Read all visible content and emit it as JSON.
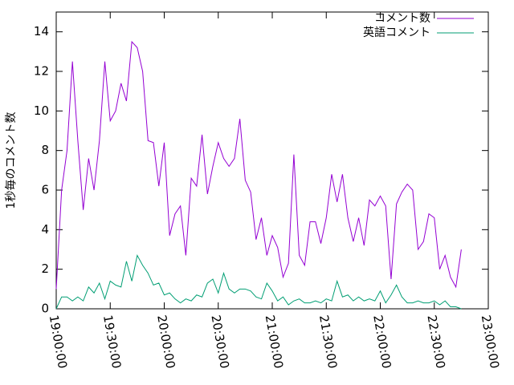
{
  "chart_data": {
    "type": "line",
    "ylabel": "1秒毎のコメント数",
    "x": [
      "19:00:00",
      "19:03:00",
      "19:06:00",
      "19:09:00",
      "19:12:00",
      "19:15:00",
      "19:18:00",
      "19:21:00",
      "19:24:00",
      "19:27:00",
      "19:30:00",
      "19:33:00",
      "19:36:00",
      "19:39:00",
      "19:42:00",
      "19:45:00",
      "19:48:00",
      "19:51:00",
      "19:54:00",
      "19:57:00",
      "20:00:00",
      "20:03:00",
      "20:06:00",
      "20:09:00",
      "20:12:00",
      "20:15:00",
      "20:18:00",
      "20:21:00",
      "20:24:00",
      "20:27:00",
      "20:30:00",
      "20:33:00",
      "20:36:00",
      "20:39:00",
      "20:42:00",
      "20:45:00",
      "20:48:00",
      "20:51:00",
      "20:54:00",
      "20:57:00",
      "21:00:00",
      "21:03:00",
      "21:06:00",
      "21:09:00",
      "21:12:00",
      "21:15:00",
      "21:18:00",
      "21:21:00",
      "21:24:00",
      "21:27:00",
      "21:30:00",
      "21:33:00",
      "21:36:00",
      "21:39:00",
      "21:42:00",
      "21:45:00",
      "21:48:00",
      "21:51:00",
      "21:54:00",
      "21:57:00",
      "22:00:00",
      "22:03:00",
      "22:06:00",
      "22:09:00",
      "22:12:00",
      "22:15:00",
      "22:18:00",
      "22:21:00",
      "22:24:00",
      "22:27:00",
      "22:30:00",
      "22:33:00",
      "22:36:00",
      "22:39:00",
      "22:42:00",
      "22:45:00"
    ],
    "series": [
      {
        "name": "コメント数",
        "color": "#9400d3",
        "values": [
          1,
          6,
          8,
          12.5,
          8.5,
          5,
          7.6,
          6,
          8.5,
          12.5,
          9.5,
          10,
          11.4,
          10.5,
          13.5,
          13.2,
          12,
          8.5,
          8.4,
          6.2,
          8.4,
          3.7,
          4.8,
          5.2,
          2.7,
          6.6,
          6.2,
          8.8,
          5.8,
          7.2,
          8.4,
          7.6,
          7.2,
          7.6,
          9.6,
          6.5,
          5.9,
          3.5,
          4.6,
          2.7,
          3.7,
          3.1,
          1.6,
          2.3,
          7.8,
          2.7,
          2.2,
          4.4,
          4.4,
          3.3,
          4.6,
          6.8,
          5.4,
          6.8,
          4.6,
          3.4,
          4.6,
          3.2,
          5.5,
          5.2,
          5.7,
          5.2,
          1.5,
          5.3,
          5.9,
          6.3,
          6.0,
          3.0,
          3.4,
          4.8,
          4.6,
          2.0,
          2.7,
          1.6,
          1.1,
          3.0
        ]
      },
      {
        "name": "英語コメント",
        "color": "#009e73",
        "values": [
          0,
          0.6,
          0.6,
          0.4,
          0.6,
          0.4,
          1.1,
          0.8,
          1.3,
          0.5,
          1.4,
          1.2,
          1.1,
          2.4,
          1.4,
          2.7,
          2.2,
          1.8,
          1.2,
          1.3,
          0.7,
          0.8,
          0.5,
          0.3,
          0.5,
          0.4,
          0.7,
          0.6,
          1.3,
          1.5,
          0.8,
          1.8,
          1.0,
          0.8,
          1.0,
          1.0,
          0.9,
          0.6,
          0.5,
          1.3,
          0.9,
          0.4,
          0.6,
          0.2,
          0.4,
          0.5,
          0.3,
          0.3,
          0.4,
          0.3,
          0.5,
          0.4,
          1.4,
          0.6,
          0.7,
          0.4,
          0.6,
          0.4,
          0.5,
          0.4,
          0.9,
          0.3,
          0.7,
          1.2,
          0.6,
          0.3,
          0.3,
          0.4,
          0.3,
          0.3,
          0.4,
          0.2,
          0.4,
          0.1,
          0.1,
          0
        ]
      }
    ],
    "xlim": [
      "19:00:00",
      "23:00:00"
    ],
    "xticks": [
      "19:00:00",
      "19:30:00",
      "20:00:00",
      "20:30:00",
      "21:00:00",
      "21:30:00",
      "22:00:00",
      "22:30:00",
      "23:00:00"
    ],
    "ylim": [
      0,
      15
    ],
    "yticks": [
      0,
      2,
      4,
      6,
      8,
      10,
      12,
      14
    ],
    "legend": "top-right"
  }
}
